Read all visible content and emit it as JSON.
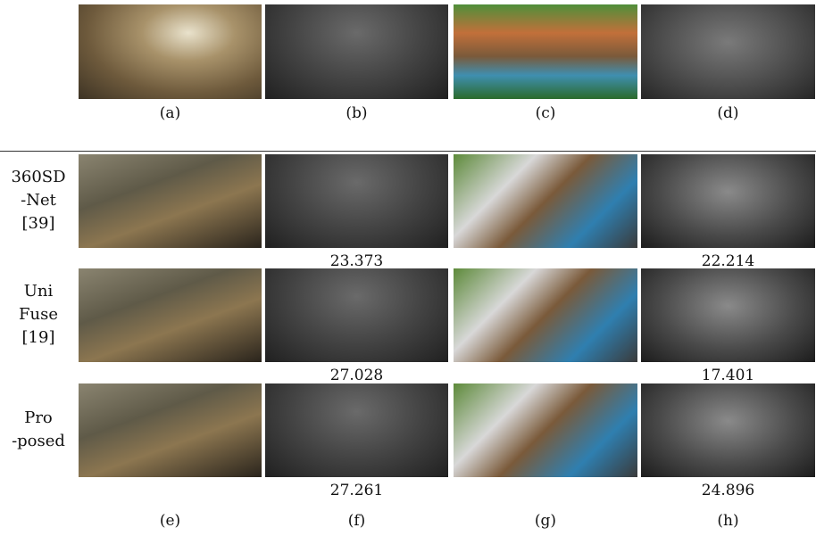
{
  "top_captions": [
    "(a)",
    "(b)",
    "(c)",
    "(d)"
  ],
  "rows": [
    {
      "label_lines": [
        "360SD",
        "-Net",
        "[39]"
      ],
      "scores": [
        23.373,
        22.214
      ]
    },
    {
      "label_lines": [
        "Uni",
        "Fuse",
        "[19]"
      ],
      "scores": [
        27.028,
        17.401
      ]
    },
    {
      "label_lines": [
        "Pro",
        "-posed"
      ],
      "scores": [
        27.261,
        24.896
      ]
    }
  ],
  "bottom_captions": [
    "(e)",
    "(f)",
    "(g)",
    "(h)"
  ]
}
